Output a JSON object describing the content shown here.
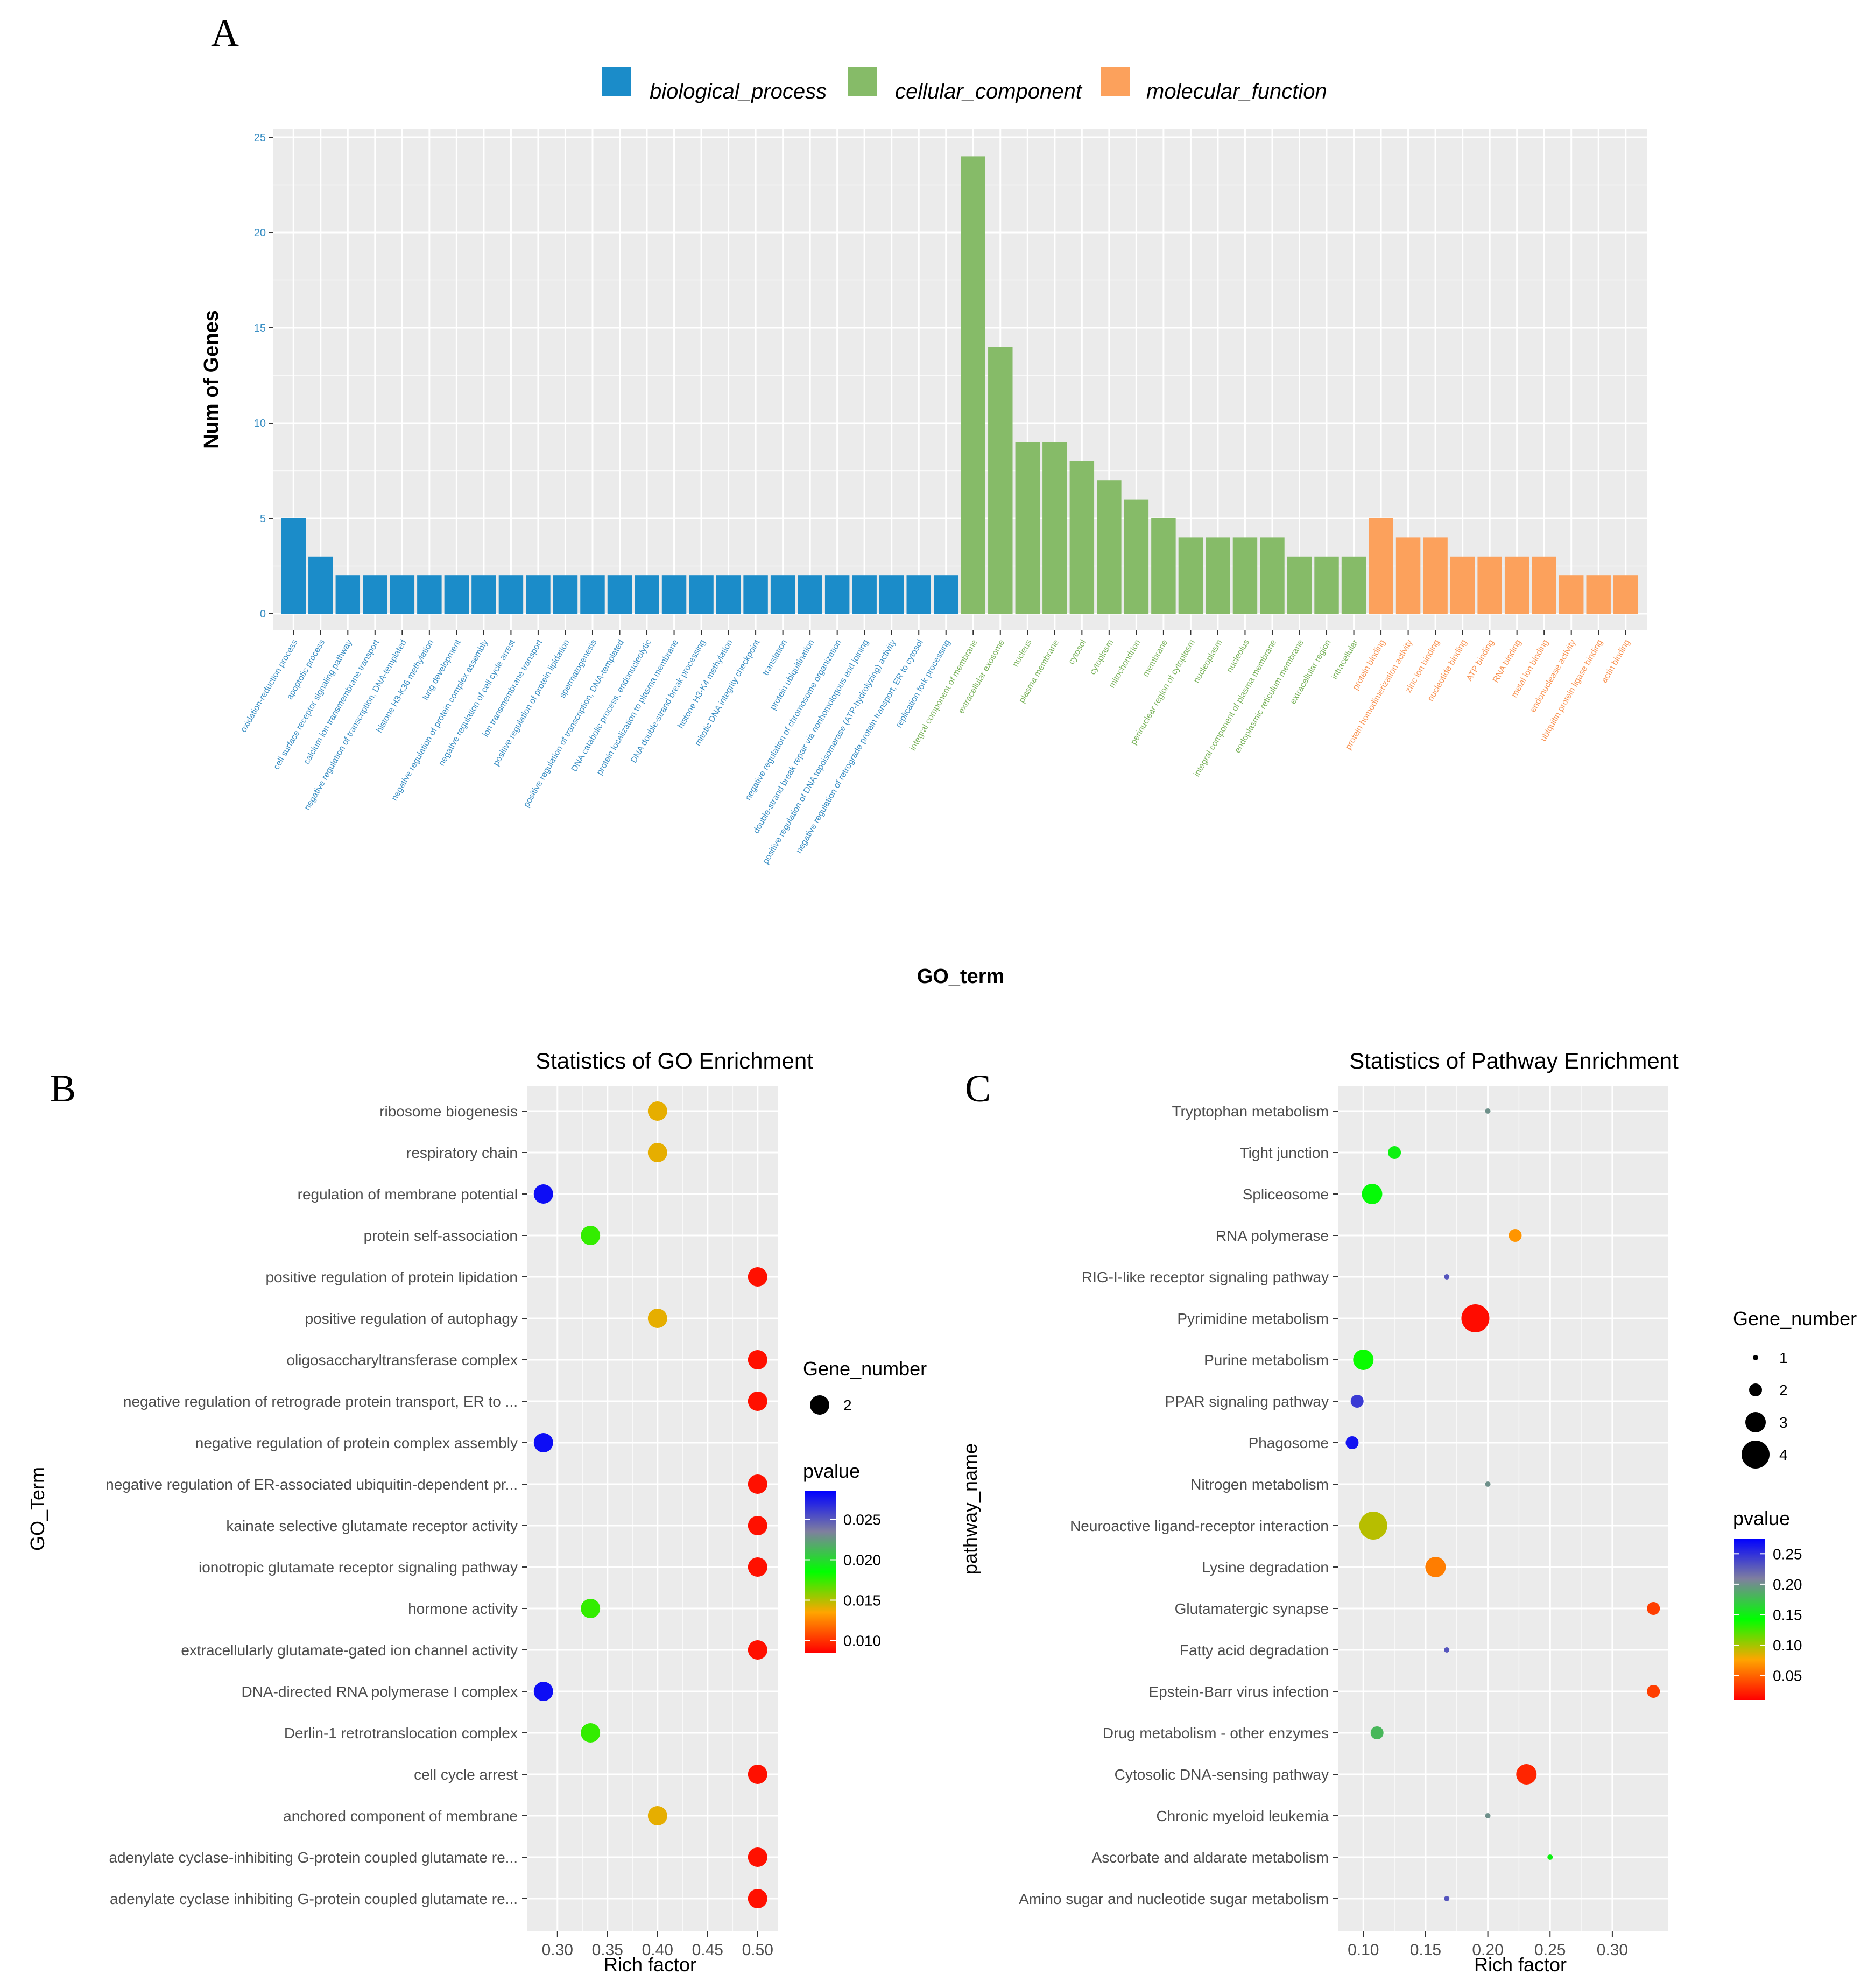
{
  "panels": {
    "a": "A",
    "b": "B",
    "c": "C"
  },
  "colors": {
    "biological_process": "#1b8cc9",
    "cellular_component": "#86bb68",
    "molecular_function": "#fca15c",
    "panel_bg": "#ebebeb",
    "grid": "#ffffff"
  },
  "chart_data": [
    {
      "id": "A",
      "type": "bar",
      "title": "",
      "xlabel": "GO_term",
      "ylabel": "Num of Genes",
      "ylim": [
        0,
        25
      ],
      "yticks": [
        0,
        5,
        10,
        15,
        20,
        25
      ],
      "legend": {
        "position": "top",
        "entries": [
          {
            "key": "biological_process",
            "label": "biological_process"
          },
          {
            "key": "cellular_component",
            "label": "cellular_component"
          },
          {
            "key": "molecular_function",
            "label": "molecular_function"
          }
        ]
      },
      "series": [
        {
          "name": "biological_process",
          "categories": [
            "oxidation-reduction process",
            "apoptotic process",
            "cell surface receptor signaling pathway",
            "calcium ion transmembrane transport",
            "negative regulation of transcription, DNA-templated",
            "histone H3-K36 methylation",
            "lung development",
            "negative regulation of protein complex assembly",
            "negative regulation of cell cycle arrest",
            "ion transmembrane transport",
            "positive regulation of protein lipidation",
            "spermatogenesis",
            "positive regulation of transcription, DNA-templated",
            "DNA catabolic process, endonucleolytic",
            "protein localization to plasma membrane",
            "DNA double-strand break processing",
            "histone H3-K4 methylation",
            "mitotic DNA integrity checkpoint",
            "translation",
            "protein ubiquitination",
            "negative regulation of chromosome organization",
            "double-strand break repair via nonhomologous end joining",
            "positive regulation of DNA topoisomerase (ATP-hydrolyzing) activity",
            "negative regulation of retrograde protein transport, ER to cytosol",
            "replication fork processing"
          ],
          "values": [
            5,
            3,
            2,
            2,
            2,
            2,
            2,
            2,
            2,
            2,
            2,
            2,
            2,
            2,
            2,
            2,
            2,
            2,
            2,
            2,
            2,
            2,
            2,
            2,
            2
          ]
        },
        {
          "name": "cellular_component",
          "categories": [
            "integral component of membrane",
            "extracellular exosome",
            "nucleus",
            "plasma membrane",
            "cytosol",
            "cytoplasm",
            "mitochondrion",
            "membrane",
            "perinuclear region of cytoplasm",
            "nucleoplasm",
            "nucleolus",
            "integral component of plasma membrane",
            "endoplasmic reticulum membrane",
            "extracellular region",
            "intracellular"
          ],
          "values": [
            24,
            14,
            9,
            9,
            8,
            7,
            6,
            5,
            4,
            4,
            4,
            4,
            3,
            3,
            3
          ]
        },
        {
          "name": "molecular_function",
          "categories": [
            "protein binding",
            "protein homodimerization activity",
            "zinc ion binding",
            "nucleotide binding",
            "ATP binding",
            "RNA binding",
            "metal ion binding",
            "endonuclease activity",
            "ubiquitin protein ligase binding",
            "actin binding"
          ],
          "values": [
            5,
            4,
            4,
            3,
            3,
            3,
            3,
            2,
            2,
            2
          ]
        }
      ]
    },
    {
      "id": "B",
      "type": "scatter",
      "title": "Statistics of GO Enrichment",
      "xlabel": "Rich factor",
      "ylabel": "GO_Term",
      "xlim": [
        0.27,
        0.52
      ],
      "xticks": [
        0.3,
        0.35,
        0.4,
        0.45,
        0.5
      ],
      "xtick_labels": [
        "0.30",
        "0.35",
        "0.40",
        "0.45",
        "0.50"
      ],
      "size_legend_title": "Gene_number",
      "size_legend": [
        {
          "value": 2,
          "label": "2"
        }
      ],
      "color_legend_title": "pvalue",
      "color_legend": {
        "min": 0.0085,
        "max": 0.0285,
        "ticks": [
          0.01,
          0.015,
          0.02,
          0.025
        ],
        "tick_labels": [
          "0.010",
          "0.015",
          "0.020",
          "0.025"
        ]
      },
      "points": [
        {
          "term": "ribosome biogenesis",
          "rich_factor": 0.4,
          "gene_number": 2,
          "pvalue": 0.014
        },
        {
          "term": "respiratory chain",
          "rich_factor": 0.4,
          "gene_number": 2,
          "pvalue": 0.014
        },
        {
          "term": "regulation of membrane potential",
          "rich_factor": 0.286,
          "gene_number": 2,
          "pvalue": 0.028
        },
        {
          "term": "protein self-association",
          "rich_factor": 0.333,
          "gene_number": 2,
          "pvalue": 0.0175
        },
        {
          "term": "positive regulation of protein lipidation",
          "rich_factor": 0.5,
          "gene_number": 2,
          "pvalue": 0.009
        },
        {
          "term": "positive regulation of autophagy",
          "rich_factor": 0.4,
          "gene_number": 2,
          "pvalue": 0.014
        },
        {
          "term": "oligosaccharyltransferase complex",
          "rich_factor": 0.5,
          "gene_number": 2,
          "pvalue": 0.009
        },
        {
          "term": "negative regulation of retrograde protein transport, ER to ...",
          "rich_factor": 0.5,
          "gene_number": 2,
          "pvalue": 0.009
        },
        {
          "term": "negative regulation of protein complex assembly",
          "rich_factor": 0.286,
          "gene_number": 2,
          "pvalue": 0.028
        },
        {
          "term": "negative regulation of ER-associated ubiquitin-dependent pr...",
          "rich_factor": 0.5,
          "gene_number": 2,
          "pvalue": 0.009
        },
        {
          "term": "kainate selective glutamate receptor activity",
          "rich_factor": 0.5,
          "gene_number": 2,
          "pvalue": 0.009
        },
        {
          "term": "ionotropic glutamate receptor signaling pathway",
          "rich_factor": 0.5,
          "gene_number": 2,
          "pvalue": 0.009
        },
        {
          "term": "hormone activity",
          "rich_factor": 0.333,
          "gene_number": 2,
          "pvalue": 0.0175
        },
        {
          "term": "extracellularly glutamate-gated ion channel activity",
          "rich_factor": 0.5,
          "gene_number": 2,
          "pvalue": 0.009
        },
        {
          "term": "DNA-directed RNA polymerase I complex",
          "rich_factor": 0.286,
          "gene_number": 2,
          "pvalue": 0.028
        },
        {
          "term": "Derlin-1 retrotranslocation complex",
          "rich_factor": 0.333,
          "gene_number": 2,
          "pvalue": 0.0175
        },
        {
          "term": "cell cycle arrest",
          "rich_factor": 0.5,
          "gene_number": 2,
          "pvalue": 0.009
        },
        {
          "term": "anchored component of membrane",
          "rich_factor": 0.4,
          "gene_number": 2,
          "pvalue": 0.014
        },
        {
          "term": "adenylate cyclase-inhibiting G-protein coupled glutamate re...",
          "rich_factor": 0.5,
          "gene_number": 2,
          "pvalue": 0.009
        },
        {
          "term": "adenylate cyclase inhibiting G-protein coupled glutamate re...",
          "rich_factor": 0.5,
          "gene_number": 2,
          "pvalue": 0.009
        }
      ]
    },
    {
      "id": "C",
      "type": "scatter",
      "title": "Statistics of Pathway Enrichment",
      "xlabel": "Rich factor",
      "ylabel": "pathway_name",
      "xlim": [
        0.08,
        0.345
      ],
      "xticks": [
        0.1,
        0.15,
        0.2,
        0.25,
        0.3
      ],
      "xtick_labels": [
        "0.10",
        "0.15",
        "0.20",
        "0.25",
        "0.30"
      ],
      "size_legend_title": "Gene_number",
      "size_legend": [
        {
          "value": 1,
          "label": "1"
        },
        {
          "value": 2,
          "label": "2"
        },
        {
          "value": 3,
          "label": "3"
        },
        {
          "value": 4,
          "label": "4"
        }
      ],
      "color_legend_title": "pvalue",
      "color_legend": {
        "min": 0.01,
        "max": 0.275,
        "ticks": [
          0.05,
          0.1,
          0.15,
          0.2,
          0.25
        ],
        "tick_labels": [
          "0.05",
          "0.10",
          "0.15",
          "0.20",
          "0.25"
        ]
      },
      "points": [
        {
          "term": "Tryptophan metabolism",
          "rich_factor": 0.2,
          "gene_number": 1,
          "pvalue": 0.2
        },
        {
          "term": "Tight junction",
          "rich_factor": 0.125,
          "gene_number": 2,
          "pvalue": 0.15
        },
        {
          "term": "Spliceosome",
          "rich_factor": 0.107,
          "gene_number": 3,
          "pvalue": 0.145
        },
        {
          "term": "RNA polymerase",
          "rich_factor": 0.222,
          "gene_number": 2,
          "pvalue": 0.07
        },
        {
          "term": "RIG-I-like receptor signaling pathway",
          "rich_factor": 0.167,
          "gene_number": 1,
          "pvalue": 0.23
        },
        {
          "term": "Pyrimidine metabolism",
          "rich_factor": 0.19,
          "gene_number": 4,
          "pvalue": 0.015
        },
        {
          "term": "Purine metabolism",
          "rich_factor": 0.1,
          "gene_number": 3,
          "pvalue": 0.14
        },
        {
          "term": "PPAR signaling pathway",
          "rich_factor": 0.095,
          "gene_number": 2,
          "pvalue": 0.245
        },
        {
          "term": "Phagosome",
          "rich_factor": 0.091,
          "gene_number": 2,
          "pvalue": 0.265
        },
        {
          "term": "Nitrogen metabolism",
          "rich_factor": 0.2,
          "gene_number": 1,
          "pvalue": 0.2
        },
        {
          "term": "Neuroactive ligand-receptor interaction",
          "rich_factor": 0.108,
          "gene_number": 4,
          "pvalue": 0.095
        },
        {
          "term": "Lysine degradation",
          "rich_factor": 0.158,
          "gene_number": 3,
          "pvalue": 0.06
        },
        {
          "term": "Glutamatergic synapse",
          "rich_factor": 0.333,
          "gene_number": 2,
          "pvalue": 0.035
        },
        {
          "term": "Fatty acid degradation",
          "rich_factor": 0.167,
          "gene_number": 1,
          "pvalue": 0.23
        },
        {
          "term": "Epstein-Barr virus infection",
          "rich_factor": 0.333,
          "gene_number": 2,
          "pvalue": 0.035
        },
        {
          "term": "Drug metabolism - other enzymes",
          "rich_factor": 0.111,
          "gene_number": 2,
          "pvalue": 0.18
        },
        {
          "term": "Cytosolic DNA-sensing pathway",
          "rich_factor": 0.231,
          "gene_number": 3,
          "pvalue": 0.025
        },
        {
          "term": "Chronic myeloid leukemia",
          "rich_factor": 0.2,
          "gene_number": 1,
          "pvalue": 0.2
        },
        {
          "term": "Ascorbate and aldarate metabolism",
          "rich_factor": 0.25,
          "gene_number": 1,
          "pvalue": 0.15
        },
        {
          "term": "Amino sugar and nucleotide sugar metabolism",
          "rich_factor": 0.167,
          "gene_number": 1,
          "pvalue": 0.23
        }
      ]
    }
  ]
}
